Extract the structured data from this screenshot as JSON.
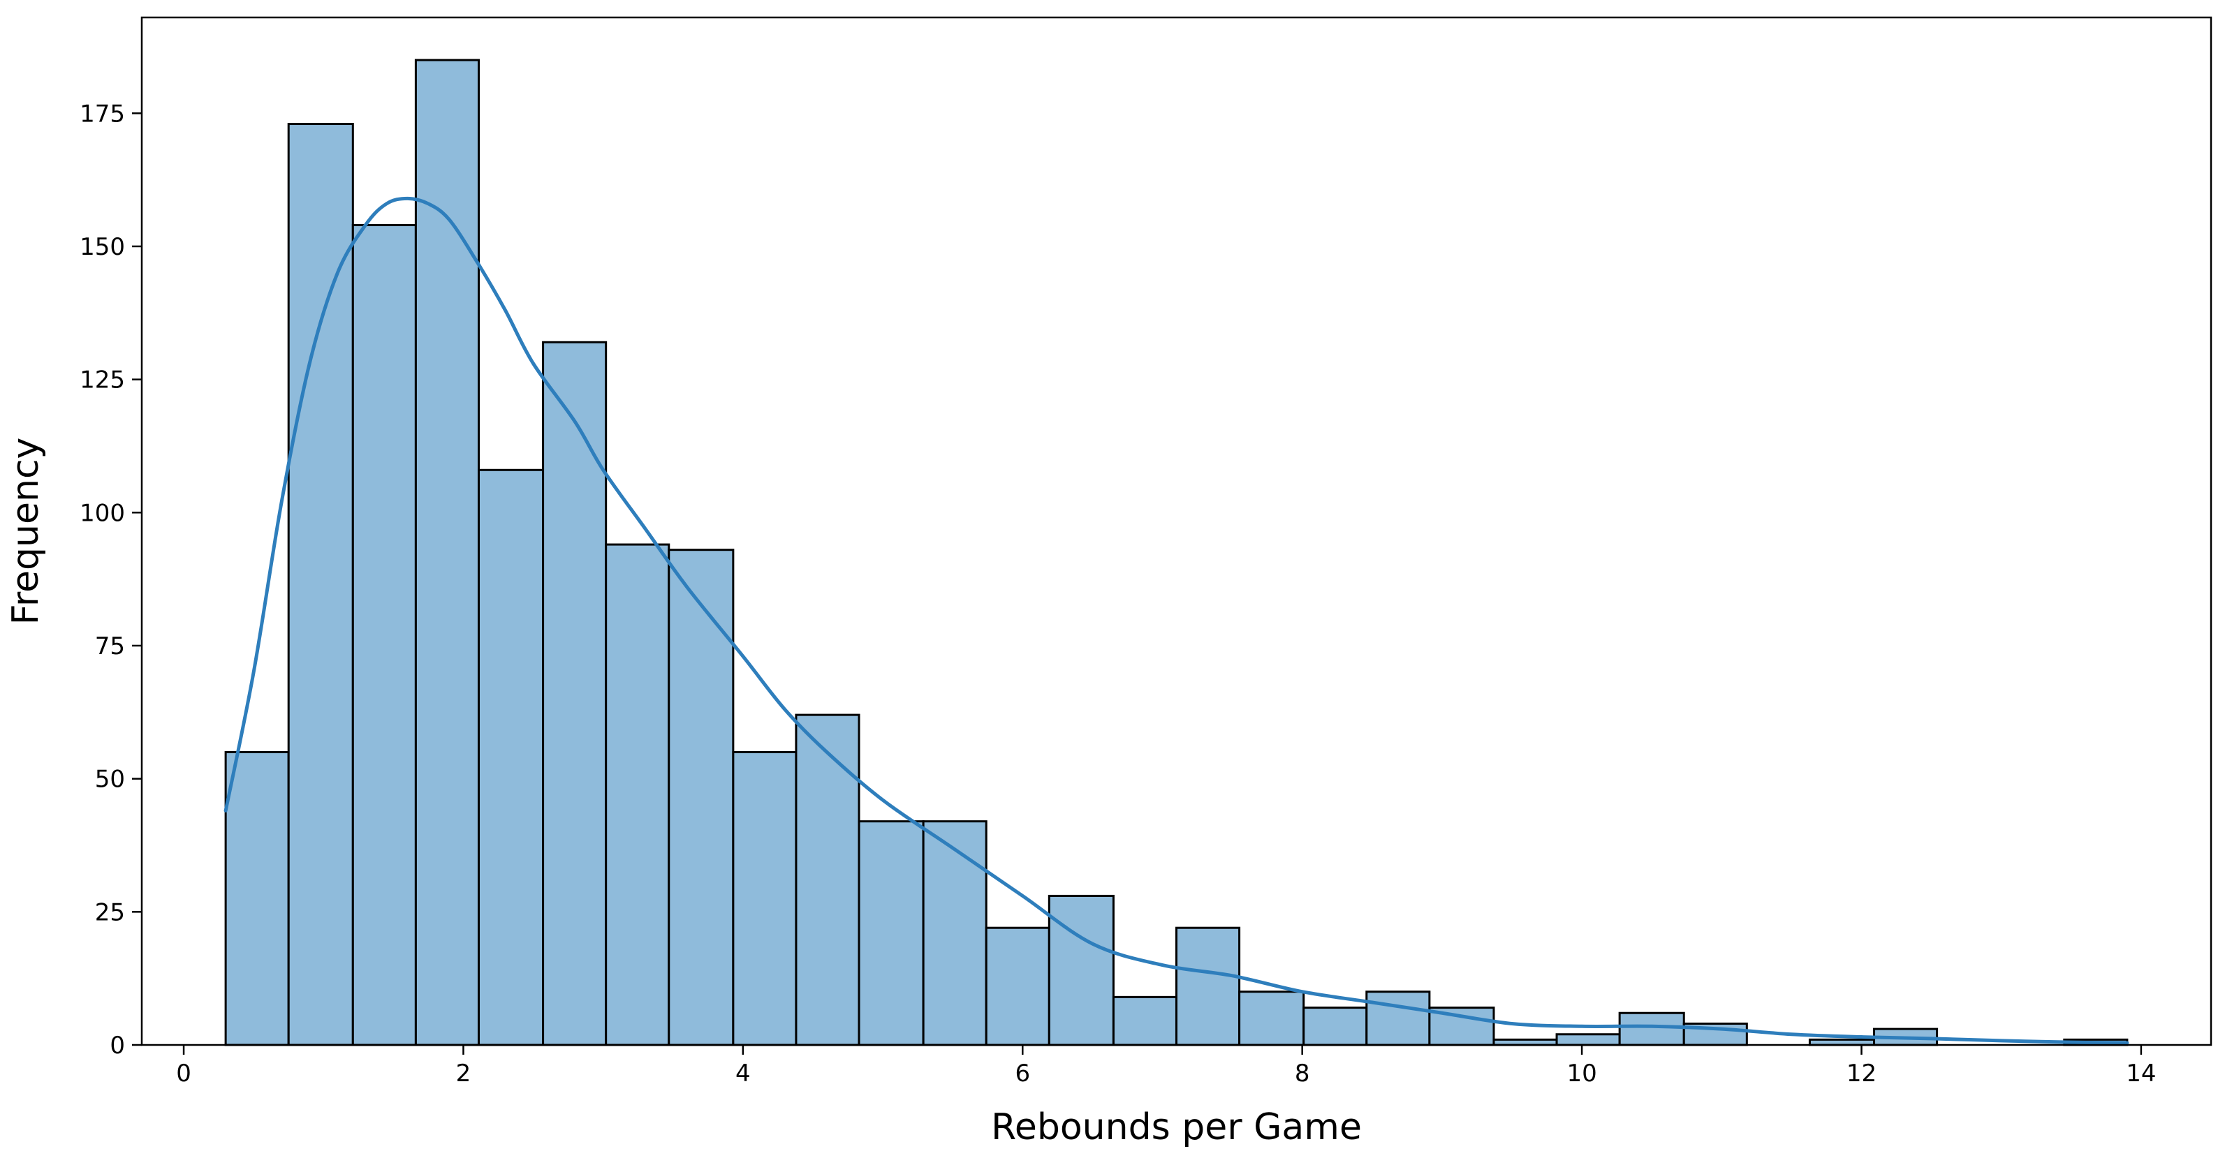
{
  "chart_data": {
    "type": "bar",
    "subtype": "histogram",
    "title": "",
    "xlabel": "Rebounds per Game",
    "ylabel": "Frequency",
    "xlim": [
      -0.3,
      14.5
    ],
    "ylim": [
      0,
      193
    ],
    "xticks": [
      0,
      2,
      4,
      6,
      8,
      10,
      12,
      14
    ],
    "yticks": [
      0,
      25,
      50,
      75,
      100,
      125,
      150,
      175
    ],
    "bin_edges": [
      0.3,
      0.75,
      1.21,
      1.66,
      2.11,
      2.57,
      3.02,
      3.47,
      3.93,
      4.38,
      4.83,
      5.29,
      5.74,
      6.19,
      6.65,
      7.1,
      7.55,
      8.01,
      8.46,
      8.91,
      9.37,
      9.82,
      10.27,
      10.73,
      11.18,
      11.63,
      12.09,
      12.54,
      12.99,
      13.45,
      13.9
    ],
    "values": [
      55,
      173,
      154,
      185,
      108,
      132,
      94,
      93,
      55,
      62,
      42,
      42,
      22,
      28,
      9,
      22,
      10,
      7,
      10,
      7,
      1,
      2,
      6,
      4,
      0,
      1,
      3,
      0,
      0,
      1
    ],
    "kde": {
      "x": [
        0.3,
        0.5,
        0.7,
        0.9,
        1.1,
        1.3,
        1.45,
        1.6,
        1.75,
        1.9,
        2.1,
        2.3,
        2.5,
        2.8,
        3.0,
        3.3,
        3.6,
        4.0,
        4.3,
        4.6,
        5.0,
        5.5,
        6.0,
        6.5,
        7.0,
        7.5,
        8.0,
        8.5,
        9.0,
        9.5,
        10.0,
        10.5,
        11.0,
        11.5,
        12.0,
        12.5,
        13.0,
        13.5,
        13.9
      ],
      "y": [
        44,
        70,
        102,
        128,
        145,
        154,
        158,
        159,
        158,
        155,
        147,
        138,
        128,
        117,
        108,
        97,
        86,
        73,
        63,
        55,
        46,
        37,
        28,
        19,
        15,
        13,
        10,
        8,
        6,
        4,
        3.5,
        3.5,
        3,
        2,
        1.5,
        1.2,
        0.8,
        0.5,
        0.4
      ]
    },
    "grid": false,
    "legend": "none",
    "colors": {
      "bar_fill": "#8fbbdb",
      "bar_edge": "#000000",
      "kde_line": "#2e7ebc"
    }
  }
}
